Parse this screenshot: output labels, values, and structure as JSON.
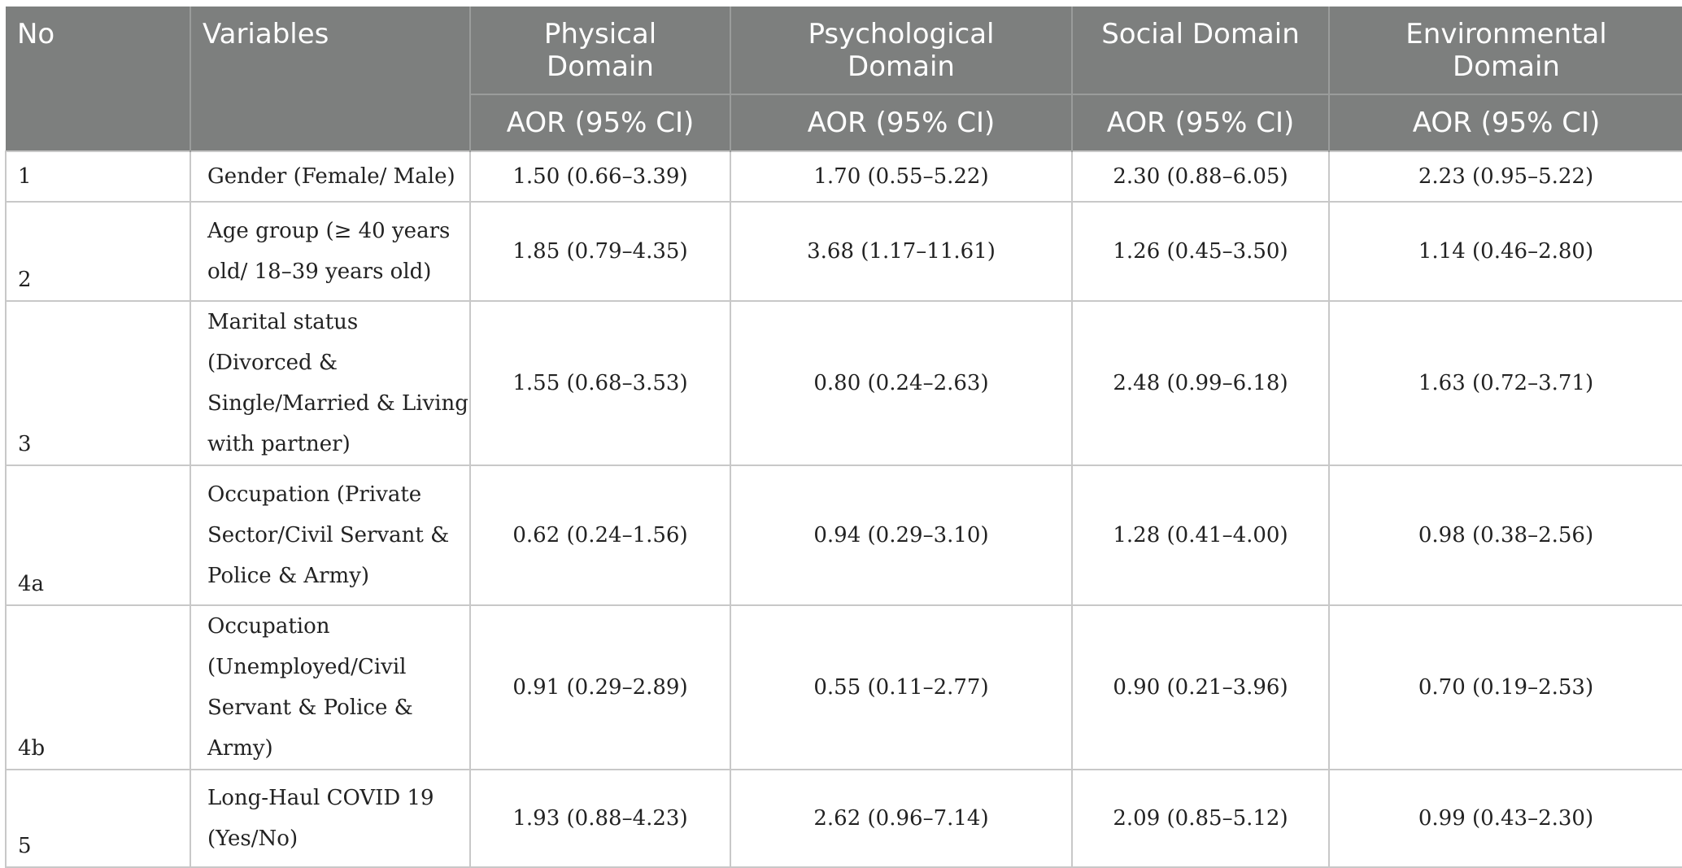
{
  "header": {
    "no": "No",
    "variables": "Variables",
    "physical": "Physical Domain",
    "psychological": "Psychological Domain",
    "social": "Social Domain",
    "environmental": "Environmental Domain",
    "sub": "AOR (95% CI)"
  },
  "rows": [
    {
      "no": "1",
      "var": "Gender (Female/ Male)",
      "phy": "1.50 (0.66–3.39)",
      "psy": "1.70 (0.55–5.22)",
      "soc": "2.30 (0.88–6.05)",
      "env": "2.23 (0.95–5.22)"
    },
    {
      "no": "2",
      "var": "Age group (≥ 40 years old/ 18–39 years old)",
      "phy": "1.85 (0.79–4.35)",
      "psy": "3.68 (1.17–11.61)",
      "soc": "1.26 (0.45–3.50)",
      "env": "1.14 (0.46–2.80)"
    },
    {
      "no": "3",
      "var": "Marital status (Divorced & Single/Married & Living with partner)",
      "phy": "1.55 (0.68–3.53)",
      "psy": "0.80 (0.24–2.63)",
      "soc": "2.48 (0.99–6.18)",
      "env": "1.63 (0.72–3.71)"
    },
    {
      "no": "4a",
      "var": "Occupation (Private Sector/Civil Servant & Police & Army)",
      "phy": "0.62 (0.24–1.56)",
      "psy": "0.94 (0.29–3.10)",
      "soc": "1.28 (0.41–4.00)",
      "env": "0.98 (0.38–2.56)"
    },
    {
      "no": "4b",
      "var": "Occupation (Unemployed/Civil Servant & Police & Army)",
      "phy": "0.91 (0.29–2.89)",
      "psy": "0.55 (0.11–2.77)",
      "soc": "0.90 (0.21–3.96)",
      "env": "0.70 (0.19–2.53)"
    },
    {
      "no": "5",
      "var": "Long-Haul COVID 19 (Yes/No)",
      "phy": "1.93 (0.88–4.23)",
      "psy": "2.62 (0.96–7.14)",
      "soc": "2.09 (0.85–5.12)",
      "env": "0.99 (0.43–2.30)"
    }
  ]
}
